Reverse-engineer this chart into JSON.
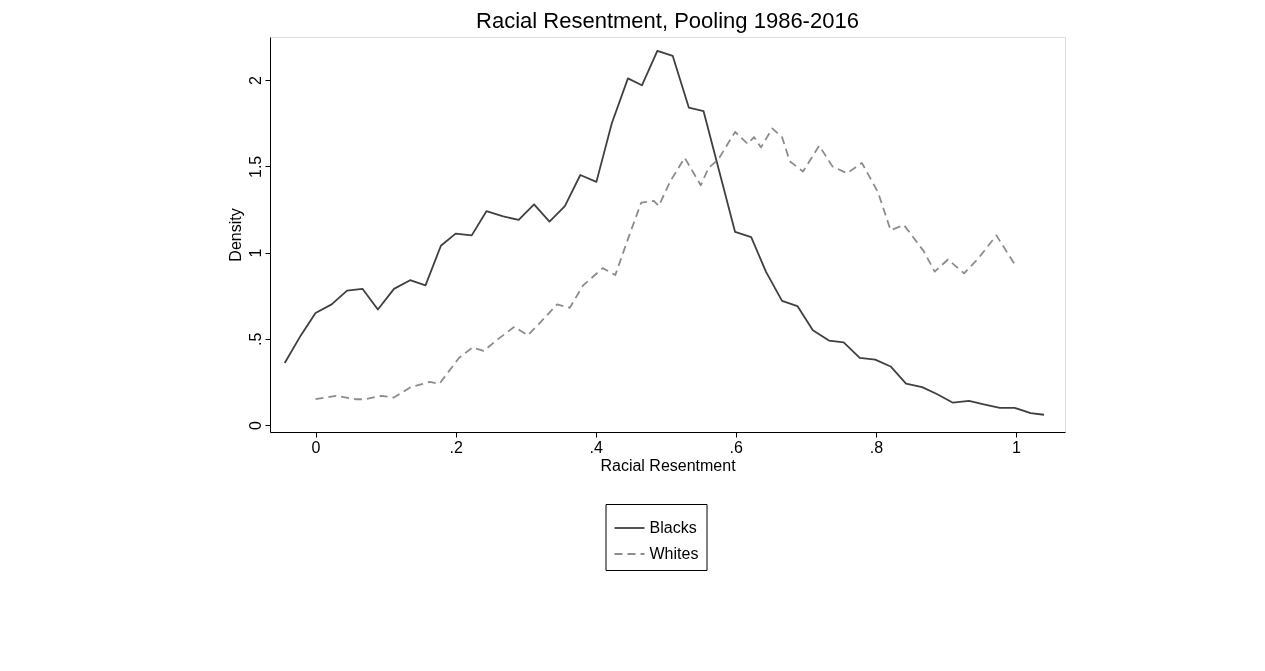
{
  "chart_data": {
    "type": "line",
    "title": "Racial Resentment, Pooling 1986-2016",
    "xlabel": "Racial Resentment",
    "ylabel": "Density",
    "xlim": [
      -0.065,
      1.07
    ],
    "ylim": [
      -0.04,
      2.25
    ],
    "xticks": [
      {
        "value": 0,
        "label": "0"
      },
      {
        "value": 0.2,
        "label": ".2"
      },
      {
        "value": 0.4,
        "label": ".4"
      },
      {
        "value": 0.6,
        "label": ".6"
      },
      {
        "value": 0.8,
        "label": ".8"
      },
      {
        "value": 1,
        "label": "1"
      }
    ],
    "yticks": [
      {
        "value": 0,
        "label": "0"
      },
      {
        "value": 0.5,
        "label": ".5"
      },
      {
        "value": 1,
        "label": "1"
      },
      {
        "value": 1.5,
        "label": "1.5"
      },
      {
        "value": 2,
        "label": "2"
      }
    ],
    "grid": false,
    "legend": "bottom",
    "series": [
      {
        "name": "Blacks",
        "color": "#404040",
        "line_style": "solid",
        "x": [
          -0.044,
          -0.021,
          0,
          0.023,
          0.045,
          0.067,
          0.089,
          0.112,
          0.135,
          0.157,
          0.179,
          0.2,
          0.223,
          0.244,
          0.268,
          0.29,
          0.312,
          0.334,
          0.356,
          0.378,
          0.401,
          0.423,
          0.446,
          0.466,
          0.488,
          0.51,
          0.533,
          0.554,
          0.599,
          0.622,
          0.643,
          0.666,
          0.688,
          0.71,
          0.733,
          0.754,
          0.777,
          0.799,
          0.821,
          0.843,
          0.866,
          0.887,
          0.91,
          0.933,
          0.954,
          0.977,
          0.998,
          1.021,
          1.04
        ],
        "values": [
          0.36,
          0.52,
          0.65,
          0.7,
          0.78,
          0.79,
          0.67,
          0.79,
          0.84,
          0.81,
          1.04,
          1.11,
          1.1,
          1.24,
          1.21,
          1.19,
          1.28,
          1.18,
          1.27,
          1.45,
          1.41,
          1.75,
          2.01,
          1.97,
          2.17,
          2.14,
          1.84,
          1.82,
          1.12,
          1.09,
          0.89,
          0.72,
          0.69,
          0.55,
          0.49,
          0.48,
          0.39,
          0.38,
          0.34,
          0.24,
          0.22,
          0.18,
          0.13,
          0.14,
          0.12,
          0.1,
          0.1,
          0.07,
          0.06
        ]
      },
      {
        "name": "Whites",
        "color": "#8c8c8c",
        "line_style": "dashed",
        "x": [
          0,
          0.029,
          0.057,
          0.071,
          0.094,
          0.112,
          0.136,
          0.163,
          0.177,
          0.205,
          0.224,
          0.24,
          0.261,
          0.284,
          0.303,
          0.322,
          0.345,
          0.363,
          0.382,
          0.41,
          0.428,
          0.447,
          0.465,
          0.483,
          0.49,
          0.506,
          0.527,
          0.55,
          0.561,
          0.575,
          0.599,
          0.617,
          0.626,
          0.636,
          0.652,
          0.666,
          0.677,
          0.696,
          0.719,
          0.738,
          0.759,
          0.78,
          0.803,
          0.821,
          0.84,
          0.868,
          0.884,
          0.903,
          0.926,
          0.947,
          0.972,
          1.0
        ],
        "values": [
          0.15,
          0.17,
          0.15,
          0.15,
          0.17,
          0.16,
          0.22,
          0.25,
          0.24,
          0.39,
          0.45,
          0.43,
          0.5,
          0.57,
          0.52,
          0.6,
          0.7,
          0.68,
          0.81,
          0.91,
          0.87,
          1.09,
          1.29,
          1.3,
          1.27,
          1.41,
          1.55,
          1.39,
          1.49,
          1.54,
          1.7,
          1.63,
          1.67,
          1.61,
          1.72,
          1.67,
          1.53,
          1.47,
          1.62,
          1.5,
          1.46,
          1.52,
          1.35,
          1.13,
          1.16,
          1.01,
          0.89,
          0.96,
          0.88,
          0.97,
          1.1,
          0.92
        ]
      }
    ]
  }
}
